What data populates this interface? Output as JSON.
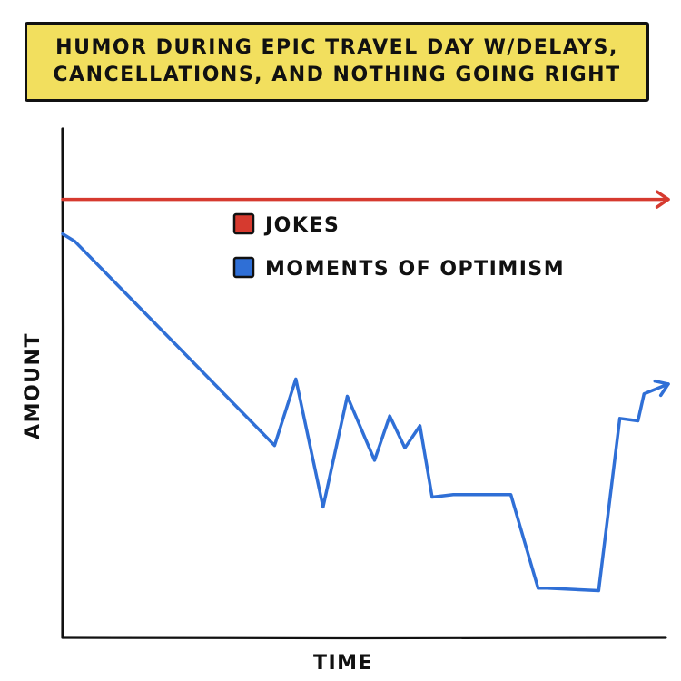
{
  "chart_data": {
    "type": "line",
    "title": [
      "HUMOR DURING EPIC TRAVEL DAY W/DELAYS,",
      "CANCELLATIONS, AND NOTHING GOING RIGHT"
    ],
    "xlabel": "TIME",
    "ylabel": "AMOUNT",
    "xlim": [
      0,
      100
    ],
    "ylim": [
      0,
      100
    ],
    "legend_position": "top-center",
    "series": [
      {
        "name": "JOKES",
        "color": "#d63a2f",
        "ends_with_arrow": true,
        "x": [
          0,
          100
        ],
        "y": [
          89,
          89
        ]
      },
      {
        "name": "MOMENTS OF OPTIMISM",
        "color": "#2f6fd6",
        "ends_with_arrow": true,
        "x": [
          0,
          2,
          35,
          38.5,
          43,
          47,
          51.5,
          54,
          56.5,
          59,
          61,
          64.5,
          74,
          78.5,
          80,
          88.5,
          92,
          95,
          96,
          100
        ],
        "y": [
          82,
          80.5,
          39,
          52.5,
          26.5,
          49,
          36,
          45,
          38.5,
          43,
          28.5,
          29,
          29,
          10,
          10,
          9.5,
          44.5,
          44,
          49.5,
          51.5
        ]
      }
    ]
  }
}
